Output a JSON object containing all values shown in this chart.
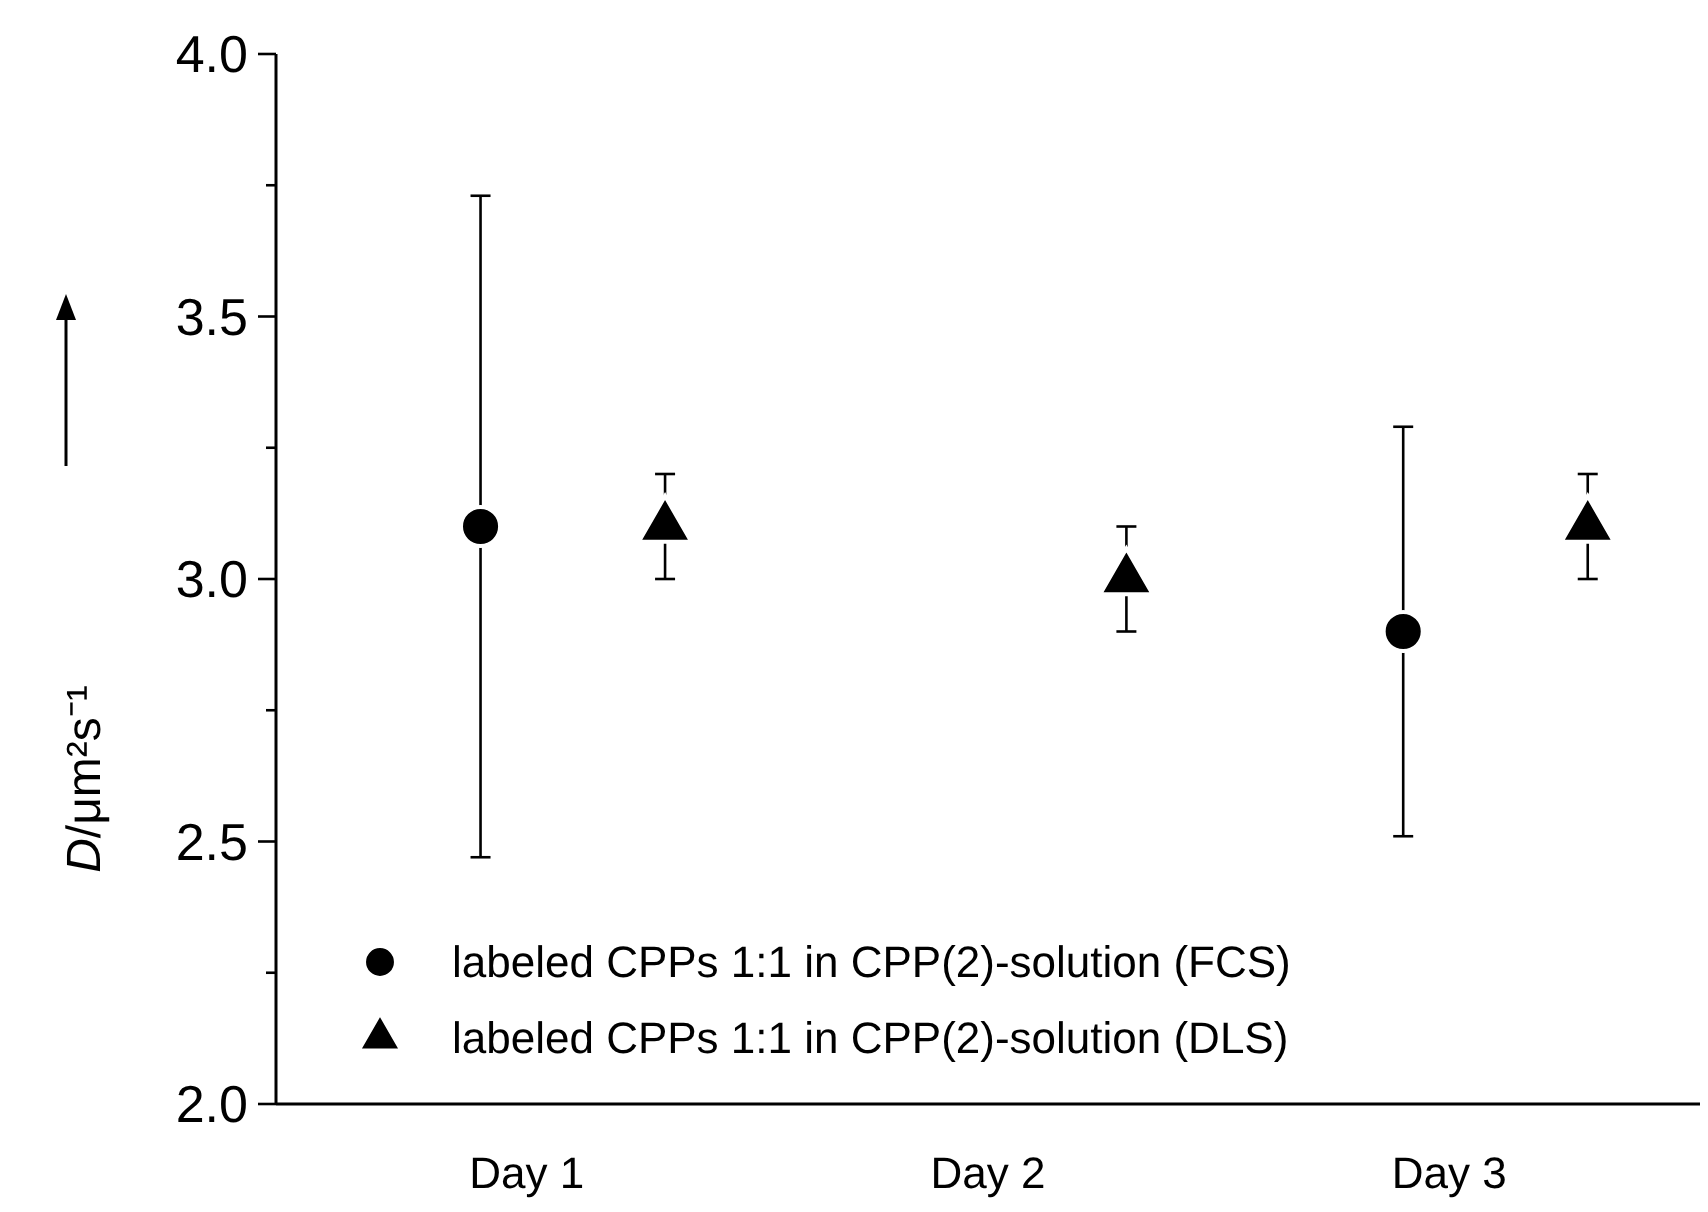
{
  "chart_data": {
    "type": "scatter",
    "ylabel": "D/μm²s⁻¹",
    "categories": [
      "Day 1",
      "Day 2",
      "Day 3"
    ],
    "ylim": [
      2.0,
      4.0
    ],
    "yticks": [
      {
        "value": 2.0,
        "label": "2.0"
      },
      {
        "value": 2.25,
        "label": null
      },
      {
        "value": 2.5,
        "label": "2.5"
      },
      {
        "value": 2.75,
        "label": null
      },
      {
        "value": 3.0,
        "label": "3.0"
      },
      {
        "value": 3.25,
        "label": null
      },
      {
        "value": 3.5,
        "label": "3.5"
      },
      {
        "value": 3.75,
        "label": null
      },
      {
        "value": 4.0,
        "label": "4.0"
      }
    ],
    "grid": false,
    "legend": "bottom left",
    "series": [
      {
        "name": "labeled CPPs 1:1 in CPP(2)-solution (FCS)",
        "color": "#000000",
        "marker": "circle",
        "values": [
          3.1,
          null,
          2.9
        ],
        "errors": [
          [
            2.47,
            3.73
          ],
          null,
          [
            2.51,
            3.29
          ]
        ]
      },
      {
        "name": "labeled CPPs 1:1 in CPP(2)-solution (DLS)",
        "color": "#000000",
        "marker": "triangle",
        "values": [
          3.1,
          3.0,
          3.1
        ],
        "errors": [
          [
            3.0,
            3.2
          ],
          [
            2.9,
            3.1
          ],
          [
            3.0,
            3.2
          ]
        ]
      }
    ]
  }
}
